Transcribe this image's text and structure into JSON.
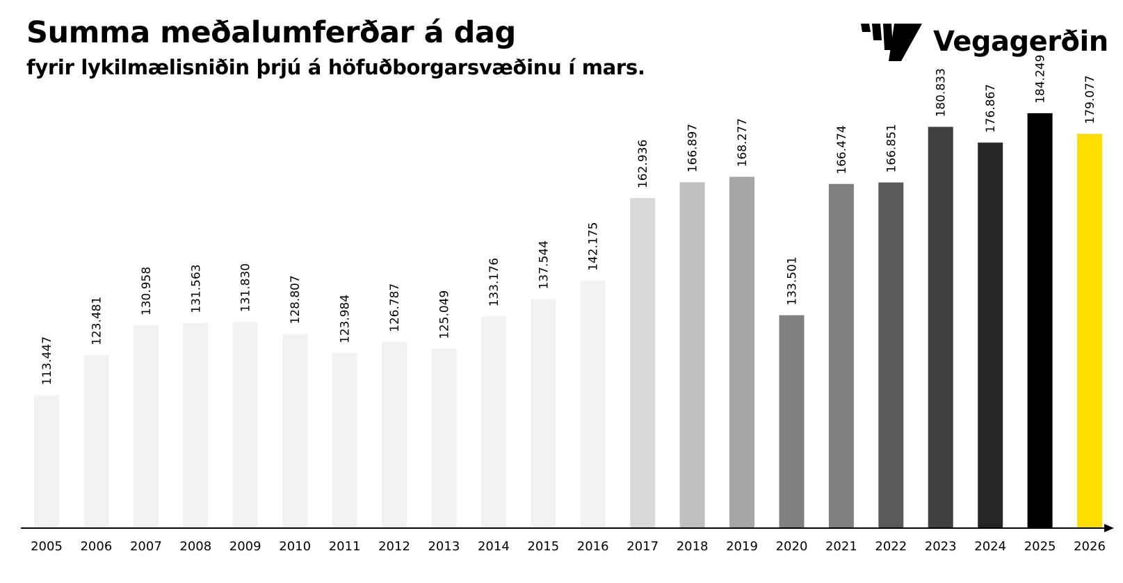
{
  "chart_data": {
    "type": "bar",
    "title": "Summa meðalumferðar á dag",
    "subtitle": "fyrir lykilmælisniðin þrjú á höfuðborgarsvæðinu í mars.",
    "xlabel": "",
    "ylabel": "",
    "ylim": [
      80000,
      190000
    ],
    "grid": false,
    "categories": [
      "2005",
      "2006",
      "2007",
      "2008",
      "2009",
      "2010",
      "2011",
      "2012",
      "2013",
      "2014",
      "2015",
      "2016",
      "2017",
      "2018",
      "2019",
      "2020",
      "2021",
      "2022",
      "2023",
      "2024",
      "2025",
      "2026"
    ],
    "values": [
      113447,
      123481,
      130958,
      131563,
      131830,
      128807,
      123984,
      126787,
      125049,
      133176,
      137544,
      142175,
      162936,
      166897,
      168277,
      133501,
      166474,
      166851,
      180833,
      176867,
      184249,
      179077
    ],
    "value_labels": [
      "113.447",
      "123.481",
      "130.958",
      "131.563",
      "131.830",
      "128.807",
      "123.984",
      "126.787",
      "125.049",
      "133.176",
      "137.544",
      "142.175",
      "162.936",
      "166.897",
      "168.277",
      "133.501",
      "166.474",
      "166.851",
      "180.833",
      "176.867",
      "184.249",
      "179.077"
    ],
    "bar_colors": [
      "#f2f2f2",
      "#f2f2f2",
      "#f2f2f2",
      "#f2f2f2",
      "#f2f2f2",
      "#f2f2f2",
      "#f2f2f2",
      "#f2f2f2",
      "#f2f2f2",
      "#f2f2f2",
      "#f2f2f2",
      "#f2f2f2",
      "#d9d9d9",
      "#bfbfbf",
      "#a6a6a6",
      "#808080",
      "#808080",
      "#595959",
      "#404040",
      "#262626",
      "#000000",
      "#ffdd00"
    ]
  },
  "logo": {
    "text": "Vegagerðin",
    "icon": "vegagerdin-stripes-icon"
  },
  "colors": {
    "axis": "#000000",
    "text": "#000000",
    "highlight": "#ffdd00"
  }
}
